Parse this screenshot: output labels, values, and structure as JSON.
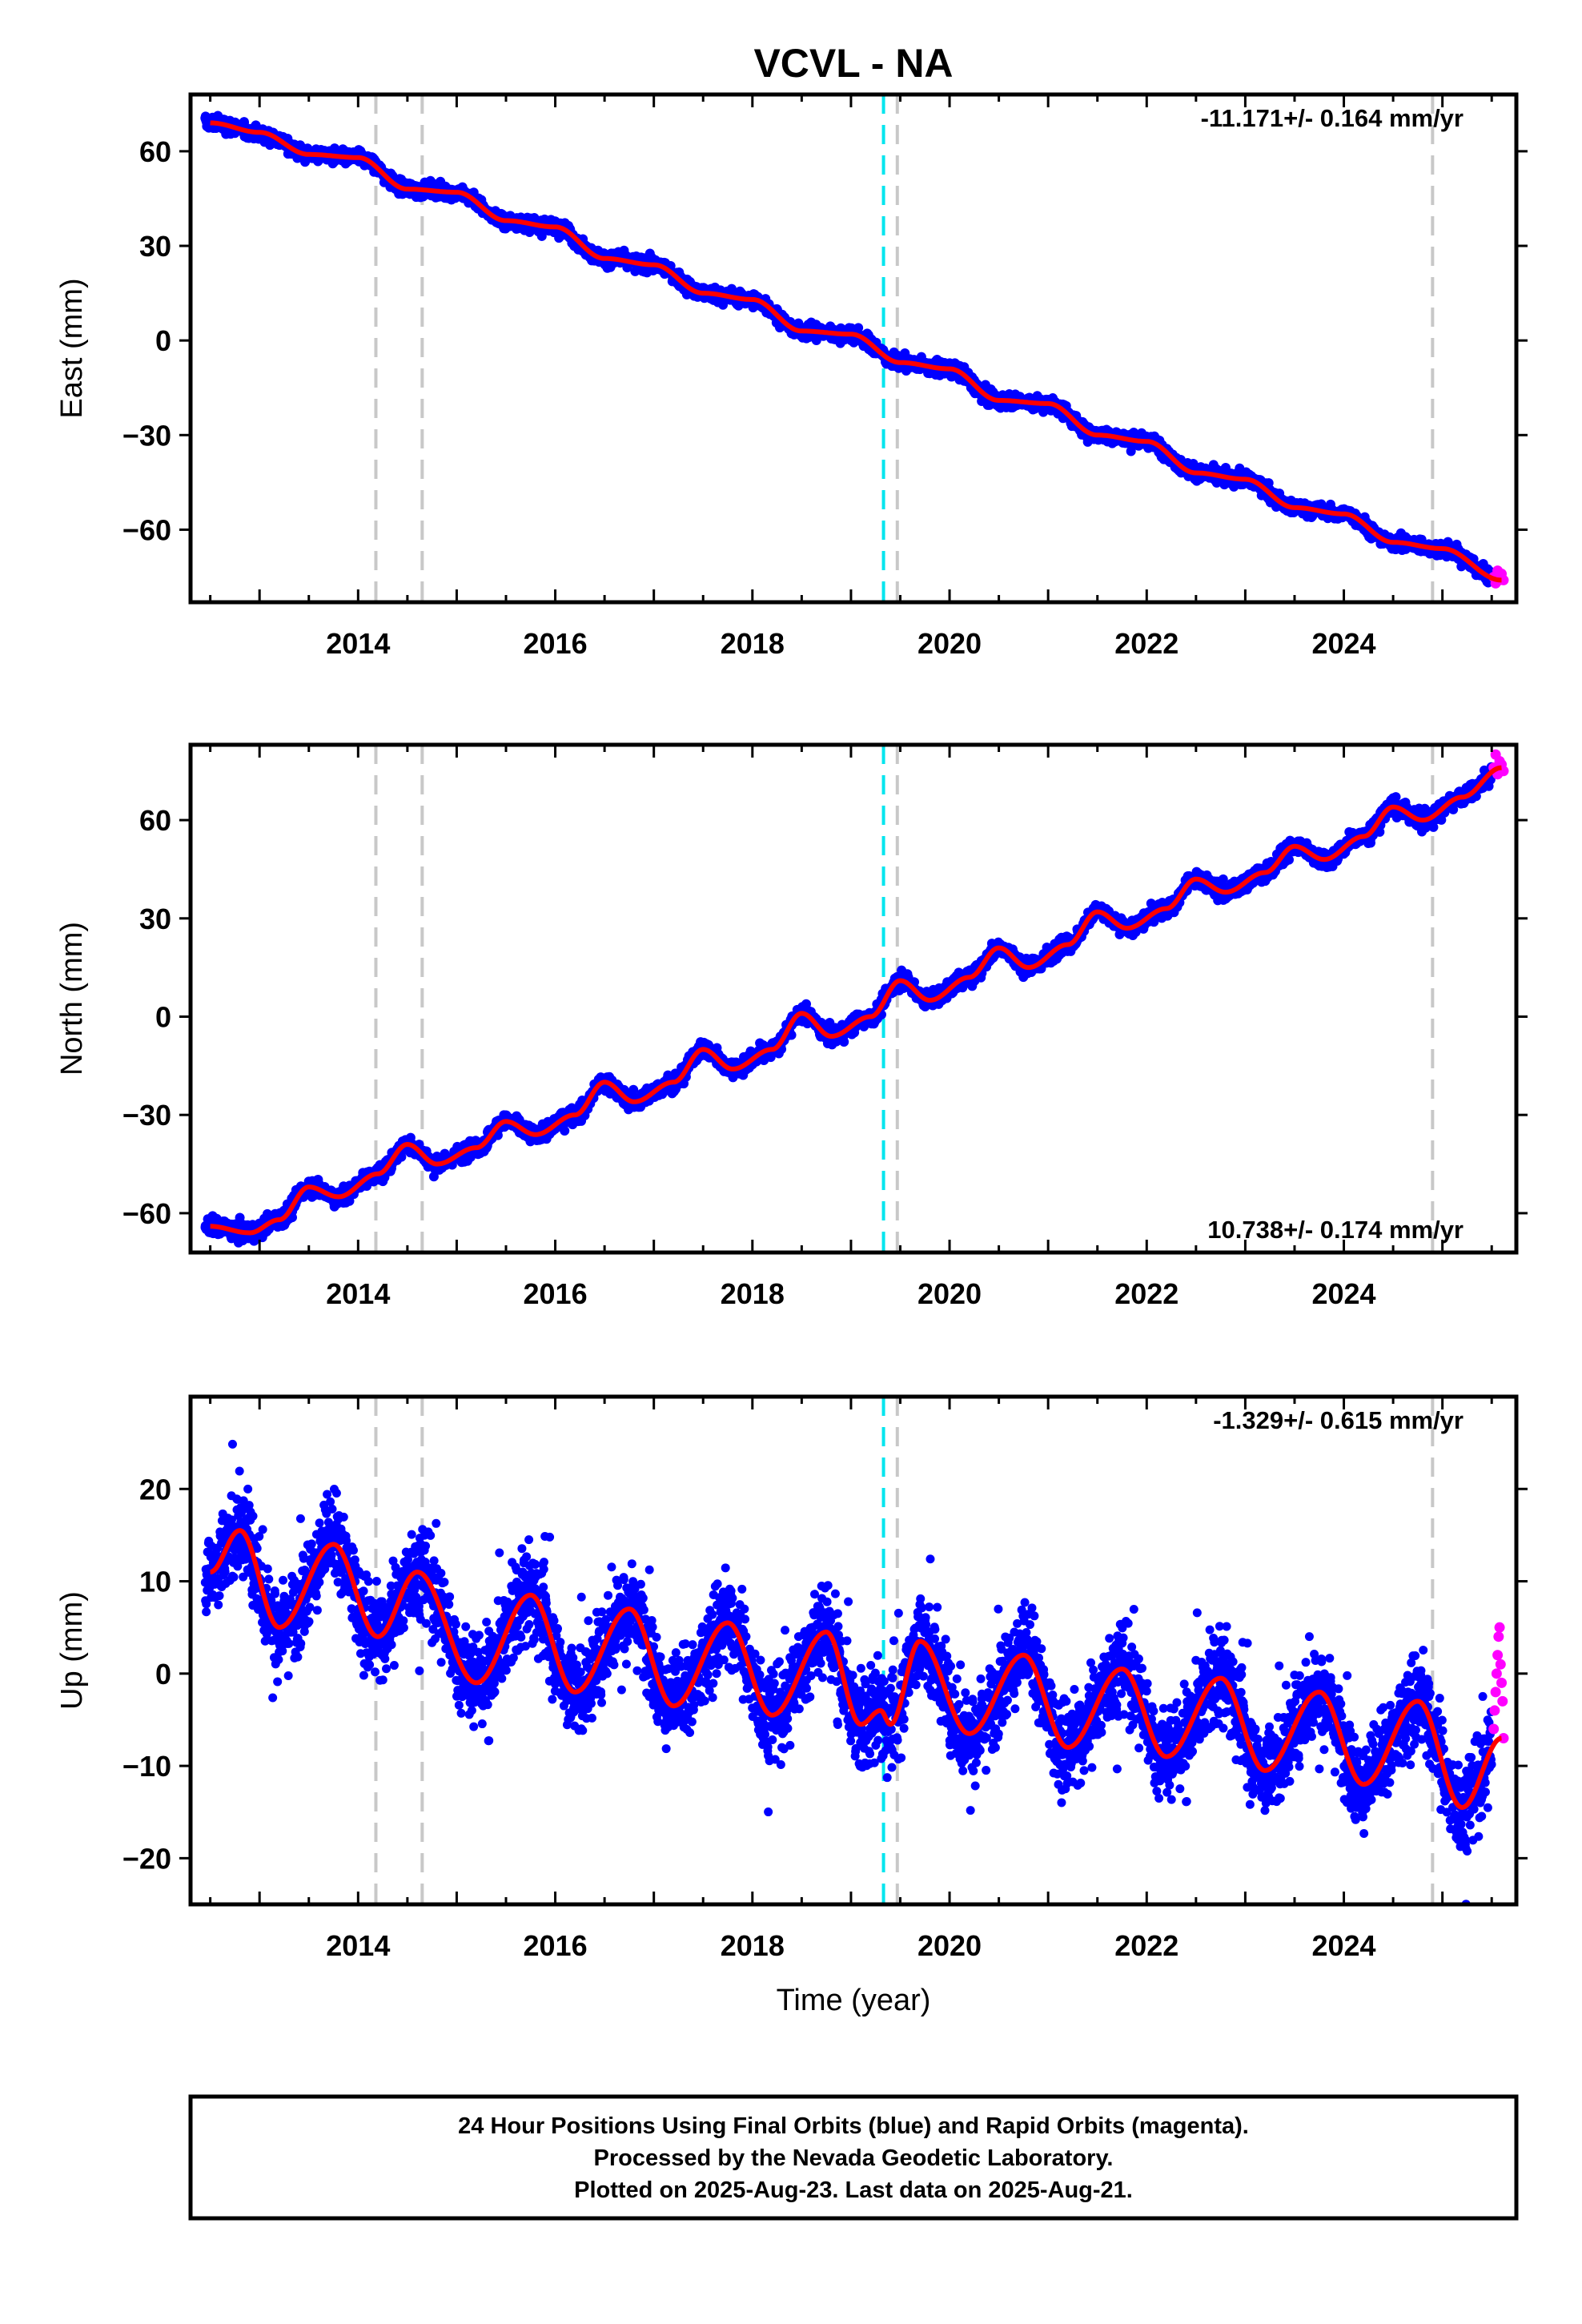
{
  "figure": {
    "title": "VCVL - NA",
    "xlabel": "Time (year)",
    "footer_lines": [
      "24 Hour Positions Using Final Orbits (blue) and Rapid Orbits (magenta).",
      "Processed by the Nevada Geodetic Laboratory.",
      "Plotted on 2025-Aug-23. Last data on 2025-Aug-21."
    ],
    "colors": {
      "final_orbits": "#0000ff",
      "rapid_orbits": "#ff00ff",
      "model_fit": "#ff0000",
      "event_gray": "#c8c8c8",
      "event_cyan": "#00e5ee"
    }
  },
  "chart_data": [
    {
      "type": "scatter",
      "ylabel": "East (mm)",
      "rate_label": "-11.171+/- 0.164 mm/yr",
      "rate_label_position": "top-right",
      "xlim": [
        2012.3,
        2025.75
      ],
      "ylim": [
        -83,
        78
      ],
      "x_ticks": [
        2014,
        2016,
        2018,
        2020,
        2022,
        2024
      ],
      "y_ticks": [
        -60,
        -30,
        0,
        30,
        60
      ],
      "events_gray": [
        2014.18,
        2014.65,
        2019.47,
        2024.9
      ],
      "events_cyan": [
        2019.33
      ],
      "model": {
        "x": [
          2012.5,
          2013.0,
          2013.5,
          2014.0,
          2014.5,
          2015.0,
          2015.5,
          2016.0,
          2016.5,
          2017.0,
          2017.5,
          2018.0,
          2018.5,
          2019.0,
          2019.5,
          2020.0,
          2020.5,
          2021.0,
          2021.5,
          2022.0,
          2022.5,
          2023.0,
          2023.5,
          2024.0,
          2024.5,
          2025.0,
          2025.6
        ],
        "y": [
          69,
          66,
          59,
          58,
          48,
          47,
          38,
          36,
          26,
          24,
          15,
          13,
          3,
          2,
          -7,
          -9,
          -19,
          -20,
          -30,
          -32,
          -42,
          -44,
          -53,
          -55,
          -64,
          -66,
          -76
        ]
      },
      "final_orbits": {
        "x_range": [
          2012.45,
          2025.5
        ],
        "noise_mm": 1.6
      },
      "rapid_orbits": {
        "x": [
          2025.52,
          2025.54,
          2025.56,
          2025.58,
          2025.6,
          2025.62
        ],
        "y": [
          -75,
          -77,
          -73,
          -76,
          -74,
          -76
        ]
      }
    },
    {
      "type": "scatter",
      "ylabel": "North (mm)",
      "rate_label": "10.738+/- 0.174 mm/yr",
      "rate_label_position": "bottom-right",
      "xlim": [
        2012.3,
        2025.75
      ],
      "ylim": [
        -72,
        83
      ],
      "x_ticks": [
        2014,
        2016,
        2018,
        2020,
        2022,
        2024
      ],
      "y_ticks": [
        -60,
        -30,
        0,
        30,
        60
      ],
      "events_gray": [
        2014.18,
        2014.65,
        2019.47,
        2024.9
      ],
      "events_cyan": [
        2019.33
      ],
      "model": {
        "x": [
          2012.5,
          2012.9,
          2013.2,
          2013.5,
          2013.8,
          2014.2,
          2014.5,
          2014.8,
          2015.2,
          2015.5,
          2015.8,
          2016.2,
          2016.5,
          2016.8,
          2017.2,
          2017.5,
          2017.8,
          2018.2,
          2018.5,
          2018.8,
          2019.2,
          2019.5,
          2019.8,
          2020.2,
          2020.5,
          2020.8,
          2021.2,
          2021.5,
          2021.8,
          2022.2,
          2022.5,
          2022.8,
          2023.2,
          2023.5,
          2023.8,
          2024.2,
          2024.5,
          2024.8,
          2025.2,
          2025.6
        ],
        "y": [
          -64,
          -66,
          -62,
          -52,
          -55,
          -48,
          -39,
          -45,
          -40,
          -32,
          -36,
          -30,
          -20,
          -26,
          -20,
          -10,
          -16,
          -10,
          1,
          -6,
          0,
          11,
          5,
          12,
          21,
          15,
          22,
          32,
          27,
          33,
          42,
          38,
          44,
          52,
          48,
          55,
          64,
          60,
          67,
          76
        ]
      },
      "final_orbits": {
        "x_range": [
          2012.45,
          2025.5
        ],
        "noise_mm": 1.8
      },
      "rapid_orbits": {
        "x": [
          2025.52,
          2025.54,
          2025.56,
          2025.58,
          2025.6,
          2025.62
        ],
        "y": [
          76,
          80,
          74,
          78,
          77,
          75
        ]
      }
    },
    {
      "type": "scatter",
      "ylabel": "Up (mm)",
      "rate_label": "-1.329+/- 0.615 mm/yr",
      "rate_label_position": "top-right",
      "xlim": [
        2012.3,
        2025.75
      ],
      "ylim": [
        -25,
        30
      ],
      "x_ticks": [
        2014,
        2016,
        2018,
        2020,
        2022,
        2024
      ],
      "y_ticks": [
        -20,
        -10,
        0,
        10,
        20
      ],
      "events_gray": [
        2014.18,
        2014.65,
        2019.47,
        2024.9
      ],
      "events_cyan": [
        2019.33
      ],
      "model": {
        "x": [
          2012.5,
          2012.8,
          2013.2,
          2013.75,
          2014.2,
          2014.6,
          2015.2,
          2015.75,
          2016.2,
          2016.75,
          2017.2,
          2017.75,
          2018.2,
          2018.75,
          2019.1,
          2019.3,
          2019.4,
          2019.7,
          2020.2,
          2020.75,
          2021.2,
          2021.75,
          2022.2,
          2022.75,
          2023.2,
          2023.75,
          2024.2,
          2024.75,
          2025.2,
          2025.6
        ],
        "y": [
          11,
          15.5,
          5,
          14,
          4,
          11,
          -1,
          8.5,
          -2,
          7,
          -3.5,
          5.5,
          -4.5,
          4.5,
          -5.5,
          -4,
          -5.5,
          3.5,
          -6.5,
          2,
          -8,
          0.5,
          -9,
          -0.5,
          -10.5,
          -2,
          -12,
          -3,
          -14.5,
          -7
        ]
      },
      "final_orbits": {
        "x_range": [
          2012.45,
          2025.5
        ],
        "noise_mm": 3.2
      },
      "rapid_orbits": {
        "x": [
          2025.52,
          2025.53,
          2025.54,
          2025.55,
          2025.56,
          2025.57,
          2025.58,
          2025.59,
          2025.6,
          2025.61,
          2025.62
        ],
        "y": [
          -6,
          -4,
          -2,
          0,
          2,
          4,
          5,
          1,
          -1,
          -3,
          -7
        ]
      }
    }
  ]
}
